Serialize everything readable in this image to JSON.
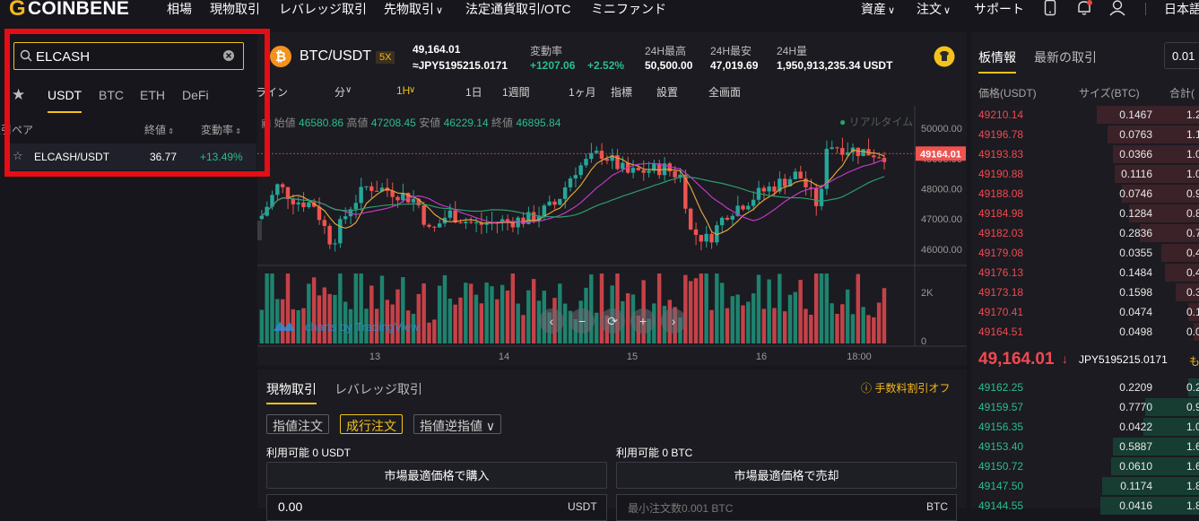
{
  "brand": {
    "name": "COINBENE"
  },
  "nav": {
    "items": [
      "相場",
      "現物取引",
      "レバレッジ取引",
      "先物取引",
      "法定通貨取引/OTC",
      "ミニファンド"
    ],
    "right": [
      "資産",
      "注文",
      "サポート",
      "日本語"
    ]
  },
  "market_list": {
    "search_value": "ELCASH",
    "tabs": [
      "USDT",
      "BTC",
      "ETH",
      "DeFi"
    ],
    "active_tab": "USDT",
    "headers": {
      "pair": "取引ペア",
      "price": "終値",
      "change": "変動率"
    },
    "rows": [
      {
        "pair": "ELCASH/USDT",
        "price": "36.77",
        "change": "+13.49%"
      }
    ]
  },
  "ticker": {
    "pair": "BTC/USDT",
    "leverage": "5X",
    "price": "49,164.01",
    "price_jpy": "≈JPY5195215.0171",
    "change_label": "変動率",
    "change_abs": "+1207.06",
    "change_pct": "+2.52%",
    "high_label": "24H最高",
    "high": "50,500.00",
    "low_label": "24H最安",
    "low": "47,019.69",
    "vol_label": "24H量",
    "vol": "1,950,913,235.34 USDT"
  },
  "chart_toolbar": [
    "ライン",
    "分",
    "1H",
    "1日",
    "1週間",
    "1ヶ月",
    "指標",
    "設置",
    "全画面"
  ],
  "ohlc": {
    "open_label": "始値",
    "open": "46580.86",
    "high_label": "高値",
    "high": "47208.45",
    "low_label": "安値",
    "low": "46229.14",
    "close_label": "終値",
    "close": "46895.84"
  },
  "realtime_label": "リアルタイム",
  "chart_data": {
    "type": "candlestick",
    "price_axis": [
      "50000.00",
      "49000.00",
      "48000.00",
      "47000.00",
      "46000.00"
    ],
    "current_price_tag": "49164.01",
    "volume_axis": [
      "2K",
      "0"
    ],
    "x_ticks": [
      "13",
      "14",
      "15",
      "16",
      "18:00"
    ],
    "ylim": [
      45700,
      50300
    ],
    "watermark": "charts by TradingView"
  },
  "orderbook": {
    "tabs": [
      "板情報",
      "最新の取引"
    ],
    "precision": "0.01",
    "headers": {
      "price": "価格(USDT)",
      "size": "サイズ(BTC)",
      "total": "合計("
    },
    "asks": [
      {
        "p": "49210.14",
        "s": "0.1467",
        "t": "1.2",
        "d": 0.95
      },
      {
        "p": "49196.78",
        "s": "0.0763",
        "t": "1.1",
        "d": 0.85
      },
      {
        "p": "49193.83",
        "s": "0.0366",
        "t": "1.0",
        "d": 0.8
      },
      {
        "p": "49190.88",
        "s": "0.1116",
        "t": "1.0",
        "d": 0.78
      },
      {
        "p": "49188.08",
        "s": "0.0746",
        "t": "0.9",
        "d": 0.72
      },
      {
        "p": "49184.98",
        "s": "0.1284",
        "t": "0.8",
        "d": 0.65
      },
      {
        "p": "49182.03",
        "s": "0.2836",
        "t": "0.7",
        "d": 0.55
      },
      {
        "p": "49179.08",
        "s": "0.0355",
        "t": "0.4",
        "d": 0.35
      },
      {
        "p": "49176.13",
        "s": "0.1484",
        "t": "0.4",
        "d": 0.32
      },
      {
        "p": "49173.18",
        "s": "0.1598",
        "t": "0.3",
        "d": 0.22
      },
      {
        "p": "49170.41",
        "s": "0.0474",
        "t": "0.1",
        "d": 0.1
      },
      {
        "p": "49164.51",
        "s": "0.0498",
        "t": "0.0",
        "d": 0.05
      }
    ],
    "mid_price": "49,164.01",
    "mid_arrow": "↓",
    "mid_jpy": "JPY5195215.0171",
    "mid_extra": "も",
    "bids": [
      {
        "p": "49162.25",
        "s": "0.2209",
        "t": "0.2",
        "d": 0.1
      },
      {
        "p": "49159.57",
        "s": "0.7770",
        "t": "0.9",
        "d": 0.5
      },
      {
        "p": "49156.35",
        "s": "0.0422",
        "t": "1.0",
        "d": 0.52
      },
      {
        "p": "49153.40",
        "s": "0.5887",
        "t": "1.6",
        "d": 0.8
      },
      {
        "p": "49150.72",
        "s": "0.0610",
        "t": "1.6",
        "d": 0.82
      },
      {
        "p": "49147.50",
        "s": "0.1174",
        "t": "1.8",
        "d": 0.9
      },
      {
        "p": "49144.55",
        "s": "0.0416",
        "t": "1.8",
        "d": 0.92
      }
    ]
  },
  "trade": {
    "tabs": [
      "現物取引",
      "レバレッジ取引"
    ],
    "fee_note": "手数料割引オフ",
    "order_types": [
      "指値注文",
      "成行注文",
      "指値逆指値"
    ],
    "avail_buy": "利用可能 0 USDT",
    "avail_sell": "利用可能 0 BTC",
    "buy_btn": "市場最適価格で購入",
    "sell_btn": "市場最適価格で売却",
    "buy_amount": "0.00",
    "buy_unit": "USDT",
    "sell_placeholder": "最小注文数0.001 BTC",
    "sell_unit": "BTC"
  }
}
